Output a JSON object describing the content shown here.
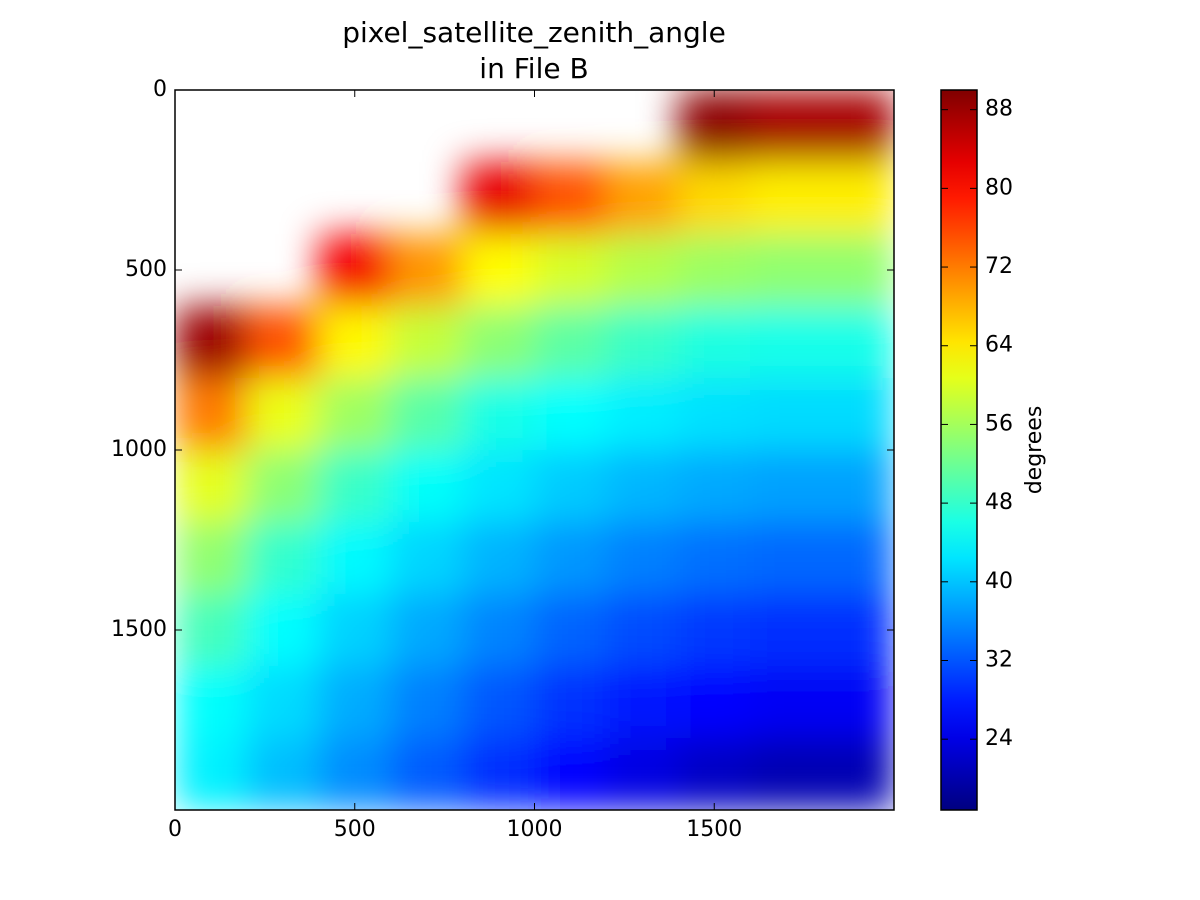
{
  "chart_data": {
    "type": "heatmap",
    "title": "pixel_satellite_zenith_angle",
    "subtitle": "in File B",
    "colormap": "jet",
    "x": [
      100,
      300,
      500,
      700,
      900,
      1100,
      1300,
      1500,
      1700,
      1900
    ],
    "y": [
      100,
      300,
      500,
      700,
      900,
      1100,
      1300,
      1500,
      1700,
      1900
    ],
    "values": [
      [
        null,
        null,
        null,
        null,
        null,
        null,
        null,
        89.0,
        87.2,
        87.2
      ],
      [
        null,
        null,
        null,
        null,
        82.5,
        74.9,
        69.2,
        65.2,
        63.7,
        63.7
      ],
      [
        null,
        null,
        81.6,
        70.1,
        62.6,
        59.5,
        57.1,
        55.4,
        54.6,
        54.6
      ],
      [
        88.0,
        74.9,
        63.0,
        58.3,
        54.2,
        50.8,
        48.2,
        46.4,
        45.8,
        45.8
      ],
      [
        72.0,
        61.1,
        55.5,
        50.4,
        46.0,
        44.3,
        43.0,
        42.1,
        41.7,
        41.7
      ],
      [
        60.7,
        54.2,
        48.2,
        44.6,
        42.4,
        40.5,
        39.0,
        38.1,
        37.5,
        37.5
      ],
      [
        54.6,
        47.8,
        43.9,
        41.2,
        38.8,
        36.8,
        35.1,
        34.0,
        33.4,
        33.4
      ],
      [
        49.1,
        44.2,
        41.0,
        38.1,
        35.4,
        33.1,
        31.3,
        30.0,
        29.3,
        29.3
      ],
      [
        44.4,
        41.7,
        38.3,
        35.1,
        32.2,
        29.6,
        27.5,
        26.0,
        25.2,
        25.2
      ],
      [
        43.3,
        39.6,
        36.0,
        32.5,
        29.3,
        26.4,
        23.9,
        21.7,
        20.4,
        20.4
      ]
    ],
    "xlim": [
      0,
      2000
    ],
    "xticks": [
      0,
      500,
      1000,
      1500
    ],
    "ylim": [
      2000,
      0
    ],
    "yticks": [
      0,
      500,
      1000,
      1500
    ],
    "colorbar": {
      "label": "degrees",
      "lim": [
        16.8,
        90
      ],
      "ticks": [
        24,
        32,
        40,
        48,
        56,
        64,
        72,
        80,
        88
      ]
    }
  }
}
